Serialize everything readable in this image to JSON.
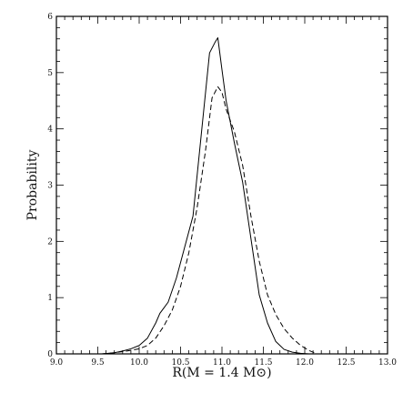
{
  "chart_data": {
    "type": "line",
    "title": "",
    "xlabel": "R(M = 1.4 M⊙)",
    "ylabel": "Probability",
    "xlim": [
      9.0,
      13.0
    ],
    "ylim": [
      0,
      6
    ],
    "grid": false,
    "x_ticks": [
      "9.0",
      "9.5",
      "10.0",
      "10.5",
      "11.0",
      "11.5",
      "12.0",
      "12.5",
      "13.0"
    ],
    "y_ticks": [
      "0",
      "1",
      "2",
      "3",
      "4",
      "5",
      "6"
    ],
    "series": [
      {
        "style": "solid",
        "color": "#000000",
        "x": [
          9.55,
          9.7,
          9.8,
          9.9,
          10.0,
          10.1,
          10.2,
          10.25,
          10.3,
          10.35,
          10.45,
          10.55,
          10.65,
          10.75,
          10.85,
          10.92,
          10.95,
          11.0,
          11.05,
          11.15,
          11.25,
          11.35,
          11.45,
          11.55,
          11.65,
          11.75,
          11.85,
          11.95,
          12.05
        ],
        "y": [
          0.0,
          0.02,
          0.05,
          0.09,
          0.15,
          0.28,
          0.55,
          0.72,
          0.82,
          0.92,
          1.35,
          1.9,
          2.45,
          3.9,
          5.35,
          5.55,
          5.62,
          5.05,
          4.5,
          3.75,
          3.05,
          2.05,
          1.05,
          0.55,
          0.22,
          0.08,
          0.03,
          0.01,
          0.0
        ]
      },
      {
        "style": "dashed",
        "color": "#000000",
        "x": [
          9.55,
          9.7,
          9.85,
          10.0,
          10.1,
          10.2,
          10.3,
          10.4,
          10.5,
          10.6,
          10.7,
          10.8,
          10.88,
          10.95,
          11.0,
          11.05,
          11.15,
          11.25,
          11.35,
          11.45,
          11.55,
          11.65,
          11.75,
          11.85,
          11.95,
          12.05,
          12.15
        ],
        "y": [
          0.0,
          0.02,
          0.05,
          0.09,
          0.15,
          0.28,
          0.5,
          0.78,
          1.2,
          1.8,
          2.6,
          3.6,
          4.55,
          4.75,
          4.65,
          4.35,
          3.95,
          3.35,
          2.45,
          1.65,
          1.05,
          0.7,
          0.45,
          0.28,
          0.15,
          0.06,
          0.0
        ]
      }
    ]
  }
}
